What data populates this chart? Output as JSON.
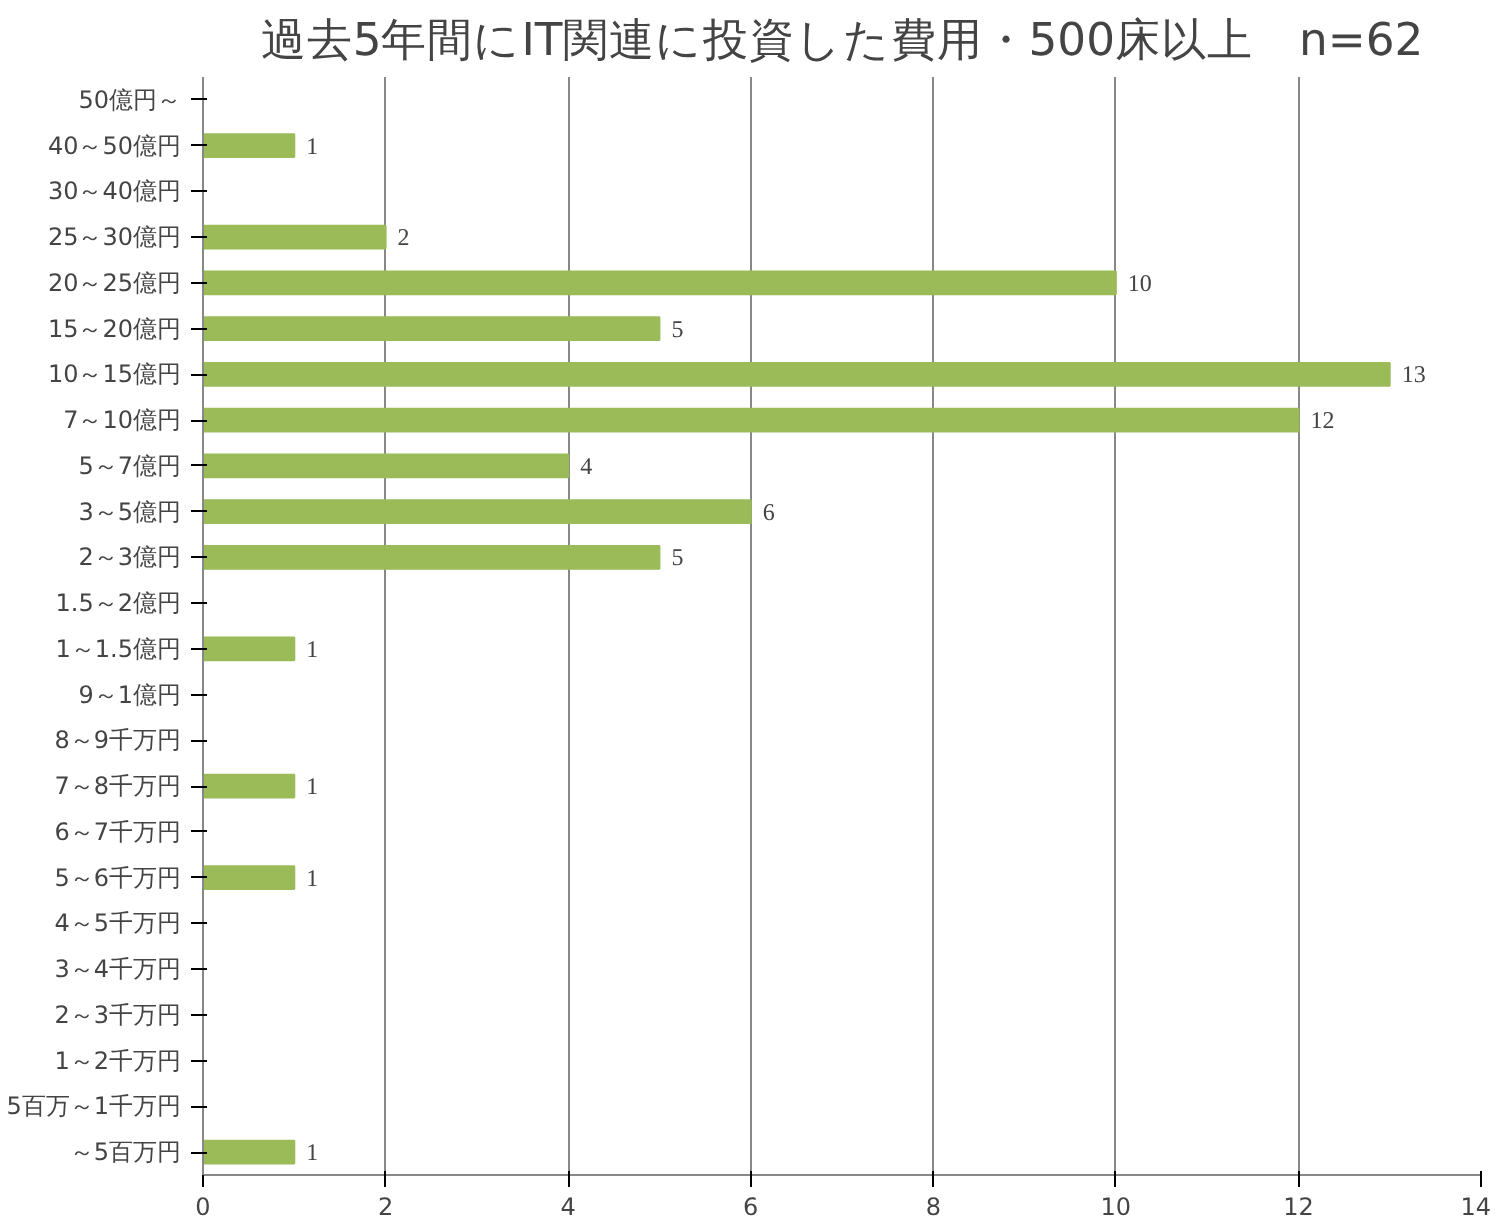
{
  "chart_data": {
    "type": "bar",
    "orientation": "horizontal",
    "title": "過去5年間にIT関連に投資した費用・500床以上　n=62",
    "categories": [
      "50億円～",
      "40～50億円",
      "30～40億円",
      "25～30億円",
      "20～25億円",
      "15～20億円",
      "10～15億円",
      "7～10億円",
      "5～7億円",
      "3～5億円",
      "2～3億円",
      "1.5～2億円",
      "1～1.5億円",
      "9～1億円",
      "8～9千万円",
      "7～8千万円",
      "6～7千万円",
      "5～6千万円",
      "4～5千万円",
      "3～4千万円",
      "2～3千万円",
      "1～2千万円",
      "5百万～1千万円",
      "～5百万円"
    ],
    "values": [
      0,
      1,
      0,
      2,
      10,
      5,
      13,
      12,
      4,
      6,
      5,
      0,
      1,
      0,
      0,
      1,
      0,
      1,
      0,
      0,
      0,
      0,
      0,
      1
    ],
    "value_labels": [
      null,
      "1",
      null,
      "2",
      "10",
      "5",
      "13",
      "12",
      "4",
      "6",
      "5",
      null,
      "1",
      null,
      null,
      "1",
      null,
      "1",
      null,
      null,
      null,
      null,
      null,
      "1"
    ],
    "color": "#9bbb59",
    "xlim": [
      0,
      14
    ],
    "xticks": [
      0,
      2,
      4,
      6,
      8,
      10,
      12,
      14
    ],
    "grid": "x"
  }
}
